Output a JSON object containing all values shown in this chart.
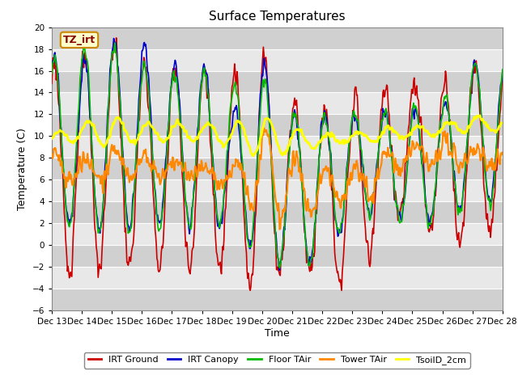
{
  "title": "Surface Temperatures",
  "xlabel": "Time",
  "ylabel": "Temperature (C)",
  "ylim": [
    -6,
    20
  ],
  "yticks": [
    -6,
    -4,
    -2,
    0,
    2,
    4,
    6,
    8,
    10,
    12,
    14,
    16,
    18,
    20
  ],
  "annotation_text": "TZ_irt",
  "annotation_box_facecolor": "#ffffcc",
  "annotation_border_color": "#cc8800",
  "annotation_text_color": "#880000",
  "bg_color": "#ffffff",
  "plot_bg_color": "#e8e8e8",
  "alt_band_color": "#d0d0d0",
  "grid_color": "#ffffff",
  "series_order": [
    "IRT Ground",
    "IRT Canopy",
    "Floor TAir",
    "Tower TAir",
    "TsoilD_2cm"
  ],
  "series": {
    "IRT Ground": {
      "color": "#cc0000",
      "lw": 1.2
    },
    "IRT Canopy": {
      "color": "#0000cc",
      "lw": 1.2
    },
    "Floor TAir": {
      "color": "#00bb00",
      "lw": 1.2
    },
    "Tower TAir": {
      "color": "#ff8800",
      "lw": 1.5
    },
    "TsoilD_2cm": {
      "color": "#ffff00",
      "lw": 2.0
    }
  },
  "x_tick_labels": [
    "Dec 13",
    "Dec 14",
    "Dec 15",
    "Dec 16",
    "Dec 17",
    "Dec 18",
    "Dec 19",
    "Dec 20",
    "Dec 21",
    "Dec 22",
    "Dec 23",
    "Dec 24",
    "Dec 25",
    "Dec 26",
    "Dec 27",
    "Dec 28"
  ],
  "x_tick_positions": [
    0,
    48,
    96,
    144,
    192,
    240,
    288,
    336,
    384,
    432,
    480,
    528,
    576,
    624,
    672,
    720
  ],
  "n_points": 721,
  "pts_per_day": 48,
  "daily_params": {
    "IRT Ground": {
      "day_max": [
        17.0,
        17.2,
        18.8,
        16.5,
        16.5,
        16.2,
        15.8,
        18.0,
        13.2,
        12.0,
        13.5,
        14.0,
        14.5,
        15.2,
        16.2,
        16.0
      ],
      "night_min": [
        -2.5,
        -2.3,
        -1.8,
        -2.2,
        -2.0,
        -2.0,
        -2.5,
        -4.8,
        -1.0,
        -3.5,
        -4.0,
        1.0,
        4.0,
        -1.0,
        1.0,
        1.0
      ],
      "noise_amp": 0.8,
      "peak_hour": 14
    },
    "IRT Canopy": {
      "day_max": [
        17.2,
        17.0,
        19.0,
        18.5,
        16.5,
        17.0,
        12.0,
        17.0,
        12.0,
        12.0,
        11.8,
        12.2,
        12.5,
        13.0,
        16.5,
        17.0
      ],
      "night_min": [
        2.0,
        1.5,
        1.5,
        1.5,
        2.0,
        2.0,
        2.0,
        -1.5,
        -2.0,
        -1.5,
        3.0,
        3.0,
        2.0,
        2.0,
        4.0,
        4.0
      ],
      "noise_amp": 0.5,
      "peak_hour": 14
    },
    "Floor TAir": {
      "day_max": [
        17.0,
        18.0,
        18.5,
        16.5,
        16.0,
        16.0,
        14.8,
        15.5,
        12.2,
        11.8,
        12.0,
        12.0,
        12.5,
        13.0,
        16.5,
        17.0
      ],
      "night_min": [
        1.5,
        1.5,
        1.0,
        1.5,
        1.5,
        2.0,
        2.0,
        -1.5,
        -2.0,
        -1.5,
        3.0,
        3.0,
        2.0,
        2.0,
        3.5,
        3.5
      ],
      "noise_amp": 0.4,
      "peak_hour": 14
    },
    "Tower TAir": {
      "day_max": [
        8.5,
        8.2,
        8.8,
        8.2,
        8.0,
        7.2,
        7.2,
        11.0,
        8.2,
        6.8,
        7.2,
        8.2,
        9.2,
        9.8,
        8.8,
        8.5
      ],
      "night_min": [
        5.5,
        5.8,
        5.5,
        6.5,
        6.0,
        6.5,
        5.0,
        2.5,
        2.5,
        3.2,
        4.5,
        5.0,
        8.0,
        7.0,
        7.5,
        7.5
      ],
      "noise_amp": 0.6,
      "peak_hour": 15
    },
    "TsoilD_2cm": {
      "day_max": [
        10.2,
        11.2,
        11.8,
        11.2,
        11.2,
        11.2,
        11.2,
        11.8,
        10.8,
        10.2,
        10.2,
        10.8,
        10.8,
        11.2,
        11.8,
        11.8
      ],
      "night_min": [
        9.5,
        9.5,
        9.0,
        9.5,
        9.5,
        9.5,
        9.0,
        8.0,
        8.5,
        9.0,
        9.5,
        9.5,
        10.0,
        10.0,
        10.5,
        10.5
      ],
      "noise_amp": 0.15,
      "peak_hour": 17
    }
  }
}
